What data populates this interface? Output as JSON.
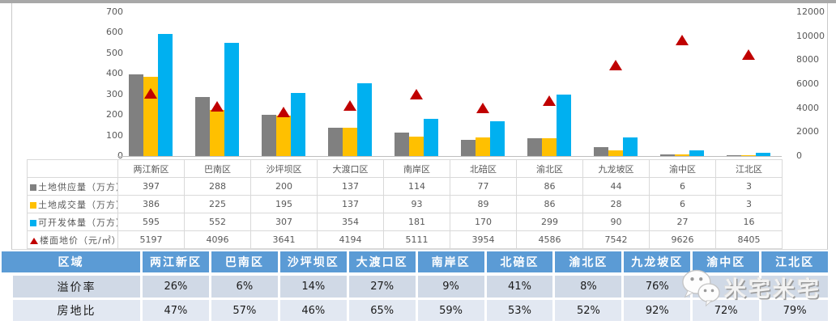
{
  "chart_data": {
    "type": "bar",
    "combo": "clustered-bar + scatter(triangle markers) on secondary axis",
    "categories": [
      "两江新区",
      "巴南区",
      "沙坪坝区",
      "大渡口区",
      "南岸区",
      "北碚区",
      "渝北区",
      "九龙坡区",
      "渝中区",
      "江北区"
    ],
    "series": [
      {
        "name": "土地供应量（万方）",
        "kind": "bar",
        "color": "#808080",
        "axis": "left",
        "values": [
          397,
          288,
          200,
          137,
          114,
          77,
          86,
          44,
          6,
          3
        ]
      },
      {
        "name": "土地成交量（万方）",
        "kind": "bar",
        "color": "#ffc000",
        "axis": "left",
        "values": [
          386,
          225,
          195,
          137,
          93,
          89,
          86,
          28,
          6,
          3
        ]
      },
      {
        "name": "可开发体量（万方）",
        "kind": "bar",
        "color": "#00b0f0",
        "axis": "left",
        "values": [
          595,
          552,
          307,
          354,
          181,
          170,
          299,
          90,
          27,
          16
        ]
      },
      {
        "name": "楼面地价（元/㎡）",
        "kind": "scatter-triangle",
        "color": "#c00000",
        "axis": "right",
        "values": [
          5197,
          4096,
          3641,
          4194,
          5111,
          3954,
          4586,
          7542,
          9626,
          8405
        ]
      }
    ],
    "left_axis": {
      "min": 0,
      "max": 700,
      "step": 100,
      "ticks": [
        "0",
        "100",
        "200",
        "300",
        "400",
        "500",
        "600",
        "700"
      ]
    },
    "right_axis": {
      "min": 0,
      "max": 12000,
      "step": 2000,
      "ticks": [
        "0",
        "2000",
        "4000",
        "6000",
        "8000",
        "10000",
        "12000"
      ]
    },
    "grid": false,
    "legend_position": "data-table-below-plot-with-legend-keys",
    "title": ""
  },
  "legend_table": {
    "row_labels": [
      "土地供应量（万方）",
      "土地成交量（万方）",
      "可开发体量（万方）",
      "楼面地价（元/㎡）"
    ],
    "key_colors": [
      "#808080",
      "#ffc000",
      "#00b0f0",
      "#c00000"
    ],
    "key_shapes": [
      "square",
      "square",
      "square",
      "triangle"
    ]
  },
  "bottom_table": {
    "header": [
      "区域",
      "两江新区",
      "巴南区",
      "沙坪坝区",
      "大渡口区",
      "南岸区",
      "北碚区",
      "渝北区",
      "九龙坡区",
      "渝中区",
      "江北区"
    ],
    "rows": [
      {
        "label": "溢价率",
        "values": [
          "26%",
          "6%",
          "14%",
          "27%",
          "9%",
          "41%",
          "8%",
          "76%",
          "",
          ""
        ]
      },
      {
        "label": "房地比",
        "values": [
          "47%",
          "57%",
          "46%",
          "65%",
          "59%",
          "53%",
          "52%",
          "92%",
          "72%",
          "79%"
        ]
      }
    ],
    "colors": {
      "header_bg": "#5b9bd5",
      "row1_bg": "#d0d9e6",
      "row2_bg": "#e2e8f2",
      "bar_gray": "#808080",
      "bar_yellow": "#ffc000",
      "bar_blue": "#00b0f0",
      "marker_red": "#c00000"
    }
  },
  "watermark": {
    "text": "米宅米宅",
    "icon": "wechat-icon"
  }
}
